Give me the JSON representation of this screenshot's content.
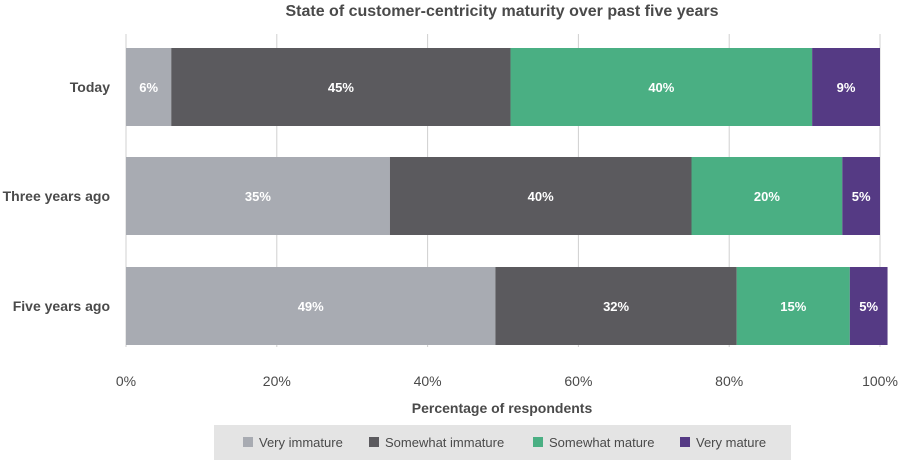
{
  "chart_data": {
    "type": "bar",
    "orientation": "horizontal",
    "stacked": true,
    "title": "State of customer-centricity maturity over past five years",
    "xlabel": "Percentage of respondents",
    "ylabel": "",
    "xlim": [
      0,
      100
    ],
    "x_ticks": [
      "0%",
      "20%",
      "40%",
      "60%",
      "80%",
      "100%"
    ],
    "categories": [
      "Today",
      "Three years ago",
      "Five years ago"
    ],
    "series": [
      {
        "name": "Very immature",
        "color": "#a8abb2",
        "values": [
          6,
          35,
          49
        ],
        "labels": [
          "6%",
          "35%",
          "49%"
        ]
      },
      {
        "name": "Somewhat immature",
        "color": "#5b5a5e",
        "values": [
          45,
          40,
          32
        ],
        "labels": [
          "45%",
          "40%",
          "32%"
        ]
      },
      {
        "name": "Somewhat mature",
        "color": "#4aaf83",
        "values": [
          40,
          20,
          15
        ],
        "labels": [
          "40%",
          "20%",
          "15%"
        ]
      },
      {
        "name": "Very mature",
        "color": "#553a84",
        "values": [
          9,
          5,
          5
        ],
        "labels": [
          "9%",
          "5%",
          "5%"
        ]
      }
    ],
    "grid": true,
    "legend_position": "bottom"
  }
}
